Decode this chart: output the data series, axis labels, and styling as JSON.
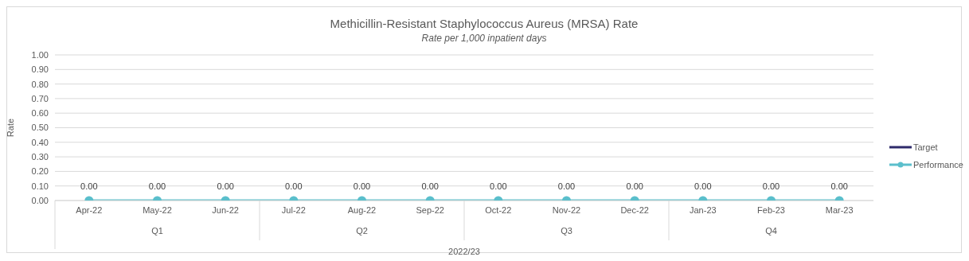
{
  "chart_data": {
    "type": "line",
    "title": "Methicillin-Resistant Staphylococcus Aureus (MRSA) Rate",
    "subtitle": "Rate per 1,000 inpatient days",
    "ylabel": "Rate",
    "xlabel": "2022/23",
    "categories": [
      "Apr-22",
      "May-22",
      "Jun-22",
      "Jul-22",
      "Aug-22",
      "Sep-22",
      "Oct-22",
      "Nov-22",
      "Dec-22",
      "Jan-23",
      "Feb-23",
      "Mar-23"
    ],
    "annotations": [
      "Q1",
      "Q2",
      "Q3",
      "Q4"
    ],
    "series": [
      {
        "name": "Target",
        "color": "#2e2a6b",
        "marker": "none",
        "values": [
          null,
          null,
          null,
          null,
          null,
          null,
          null,
          null,
          null,
          null,
          null,
          null
        ]
      },
      {
        "name": "Performance",
        "color": "#5bbfcc",
        "marker": "circle",
        "values": [
          0,
          0,
          0,
          0,
          0,
          0,
          0,
          0,
          0,
          0,
          0,
          0
        ],
        "value_labels": [
          "0.00",
          "0.00",
          "0.00",
          "0.00",
          "0.00",
          "0.00",
          "0.00",
          "0.00",
          "0.00",
          "0.00",
          "0.00",
          "0.00"
        ]
      }
    ],
    "ylim": [
      0,
      1
    ],
    "yticks": [
      {
        "value": 0,
        "label": "0.00"
      },
      {
        "value": 0.1,
        "label": "0.10"
      },
      {
        "value": 0.2,
        "label": "0.20"
      },
      {
        "value": 0.3,
        "label": "0.30"
      },
      {
        "value": 0.4,
        "label": "0.40"
      },
      {
        "value": 0.5,
        "label": "0.50"
      },
      {
        "value": 0.6,
        "label": "0.60"
      },
      {
        "value": 0.7,
        "label": "0.70"
      },
      {
        "value": 0.8,
        "label": "0.80"
      },
      {
        "value": 0.9,
        "label": "0.90"
      },
      {
        "value": 1,
        "label": "1.00"
      }
    ],
    "grid": "y",
    "legend": "right"
  }
}
